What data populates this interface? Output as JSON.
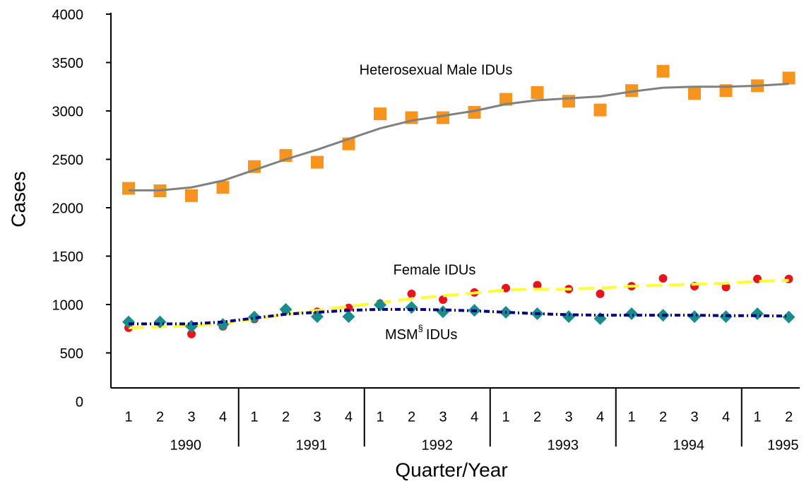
{
  "chart_data": {
    "type": "scatter",
    "y_label": "Cases",
    "x_label": "Quarter/Year",
    "ylim": [
      0,
      4000
    ],
    "yticks": [
      0,
      500,
      1000,
      1500,
      2000,
      2500,
      3000,
      3500,
      4000
    ],
    "groups": [
      {
        "label": "1990",
        "categories": [
          "1",
          "2",
          "3",
          "4"
        ]
      },
      {
        "label": "1991",
        "categories": [
          "1",
          "2",
          "3",
          "4"
        ]
      },
      {
        "label": "1992",
        "categories": [
          "1",
          "2",
          "3",
          "4"
        ]
      },
      {
        "label": "1993",
        "categories": [
          "1",
          "2",
          "3",
          "4"
        ]
      },
      {
        "label": "1994",
        "categories": [
          "1",
          "2",
          "3",
          "4"
        ]
      },
      {
        "label": "1995",
        "categories": [
          "1",
          "2"
        ]
      }
    ],
    "series": [
      {
        "name": "Heterosexual Male IDUs",
        "marker": "square",
        "color": "#f7941d",
        "values": [
          2200,
          2175,
          2125,
          2210,
          2425,
          2540,
          2470,
          2660,
          2970,
          2930,
          2930,
          2985,
          3120,
          3190,
          3100,
          3010,
          3210,
          3410,
          3180,
          3210,
          3260,
          3340
        ],
        "trend": {
          "color": "#808080",
          "dash": "none",
          "values": [
            2180,
            2180,
            2210,
            2280,
            2390,
            2500,
            2600,
            2710,
            2820,
            2900,
            2950,
            3000,
            3070,
            3110,
            3130,
            3150,
            3200,
            3240,
            3250,
            3250,
            3260,
            3280
          ]
        }
      },
      {
        "name": "Female IDUs",
        "marker": "circle",
        "color": "#e8141b",
        "values": [
          760,
          810,
          695,
          775,
          850,
          935,
          925,
          965,
          1010,
          1110,
          1050,
          1125,
          1170,
          1200,
          1160,
          1110,
          1190,
          1270,
          1190,
          1180,
          1265,
          1265
        ],
        "trend": {
          "color": "#ffff33",
          "dash": "22 10",
          "values": [
            760,
            770,
            780,
            800,
            850,
            900,
            940,
            980,
            1020,
            1060,
            1090,
            1120,
            1150,
            1160,
            1160,
            1170,
            1190,
            1200,
            1210,
            1220,
            1240,
            1250
          ]
        }
      },
      {
        "name_parts": {
          "base": "MSM",
          "sup": "§",
          "rest": "IDUs"
        },
        "marker": "diamond",
        "color": "#198c8c",
        "values": [
          820,
          820,
          775,
          795,
          870,
          950,
          875,
          875,
          995,
          970,
          925,
          940,
          920,
          905,
          875,
          855,
          905,
          890,
          875,
          875,
          905,
          870
        ],
        "trend": {
          "color": "#000080",
          "dash": "8 4 2 4",
          "values": [
            800,
            800,
            800,
            820,
            860,
            900,
            920,
            940,
            950,
            950,
            945,
            935,
            920,
            905,
            895,
            890,
            890,
            890,
            890,
            885,
            885,
            880
          ]
        }
      }
    ]
  }
}
